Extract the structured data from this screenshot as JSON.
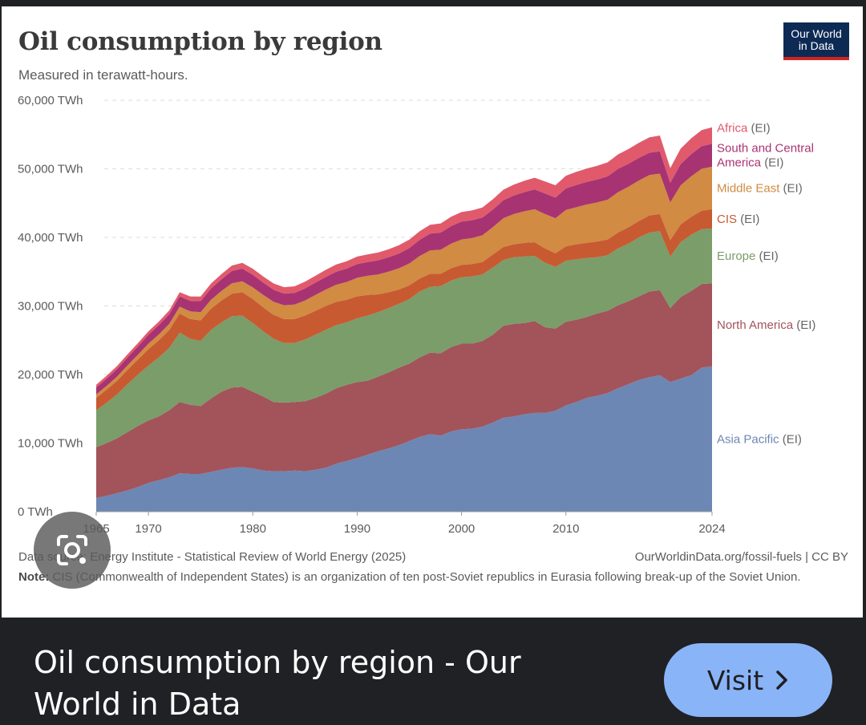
{
  "chart_data": {
    "type": "area",
    "stacked": true,
    "title": "Oil consumption by region",
    "subtitle": "Measured in terawatt-hours.",
    "ylim": [
      0,
      60000
    ],
    "y_ticks": [
      "0 TWh",
      "10,000 TWh",
      "20,000 TWh",
      "30,000 TWh",
      "40,000 TWh",
      "50,000 TWh",
      "60,000 TWh"
    ],
    "x_ticks": [
      "1965",
      "1970",
      "1980",
      "1990",
      "2000",
      "2010",
      "2024"
    ],
    "xlim": [
      1965,
      2024
    ],
    "grid": "horizontal-dashed",
    "legend": "right-inline",
    "x": [
      1965,
      1966,
      1967,
      1968,
      1969,
      1970,
      1971,
      1972,
      1973,
      1974,
      1975,
      1976,
      1977,
      1978,
      1979,
      1980,
      1981,
      1982,
      1983,
      1984,
      1985,
      1986,
      1987,
      1988,
      1989,
      1990,
      1991,
      1992,
      1993,
      1994,
      1995,
      1996,
      1997,
      1998,
      1999,
      2000,
      2001,
      2002,
      2003,
      2004,
      2005,
      2006,
      2007,
      2008,
      2009,
      2010,
      2011,
      2012,
      2013,
      2014,
      2015,
      2016,
      2017,
      2018,
      2019,
      2020,
      2021,
      2022,
      2023,
      2024
    ],
    "series": [
      {
        "name": "Asia Pacific (EI)",
        "color": "#6d87b4",
        "values": [
          2000,
          2300,
          2700,
          3100,
          3600,
          4200,
          4600,
          5000,
          5600,
          5500,
          5500,
          5800,
          6100,
          6400,
          6500,
          6300,
          6000,
          5900,
          5900,
          6000,
          5900,
          6100,
          6400,
          7000,
          7400,
          7800,
          8300,
          8800,
          9200,
          9700,
          10300,
          10900,
          11300,
          11100,
          11700,
          12000,
          12100,
          12400,
          13000,
          13700,
          13900,
          14200,
          14400,
          14400,
          14700,
          15500,
          16000,
          16600,
          16900,
          17300,
          18000,
          18600,
          19200,
          19600,
          19900,
          18900,
          19400,
          19900,
          21000,
          21200
        ]
      },
      {
        "name": "North America (EI)",
        "color": "#a2545a",
        "values": [
          7400,
          7700,
          8000,
          8500,
          8900,
          9100,
          9300,
          9800,
          10400,
          10100,
          9900,
          10700,
          11400,
          11700,
          11700,
          11200,
          10800,
          10100,
          10000,
          10000,
          10200,
          10500,
          10800,
          11000,
          11100,
          11100,
          10800,
          10900,
          11100,
          11300,
          11300,
          11600,
          11900,
          12000,
          12300,
          12500,
          12400,
          12500,
          12800,
          13400,
          13500,
          13300,
          13400,
          12500,
          12000,
          12200,
          12000,
          11800,
          12000,
          12000,
          12100,
          12100,
          12200,
          12500,
          12400,
          10800,
          11900,
          12300,
          12200,
          12100
        ]
      },
      {
        "name": "Europe (EI)",
        "color": "#7a9d6a",
        "values": [
          5400,
          5900,
          6400,
          7000,
          7500,
          8000,
          8600,
          9100,
          10100,
          9600,
          9500,
          10000,
          10100,
          10400,
          10400,
          10000,
          9500,
          9200,
          8700,
          8600,
          9000,
          9200,
          9300,
          9200,
          9100,
          9300,
          9500,
          9400,
          9400,
          9300,
          9400,
          9600,
          9600,
          9800,
          9700,
          9700,
          9800,
          9700,
          9800,
          9600,
          9700,
          9700,
          9500,
          9400,
          9000,
          8900,
          8800,
          8600,
          8200,
          8100,
          8300,
          8400,
          8600,
          8600,
          8600,
          7500,
          8000,
          8200,
          8000,
          8000
        ]
      },
      {
        "name": "CIS (EI)",
        "color": "#c85a31",
        "values": [
          1800,
          1900,
          2000,
          2100,
          2200,
          2400,
          2500,
          2600,
          2800,
          2900,
          3000,
          3100,
          3200,
          3300,
          3400,
          3500,
          3500,
          3500,
          3500,
          3500,
          3500,
          3500,
          3500,
          3400,
          3300,
          3200,
          3000,
          2600,
          2300,
          2100,
          2000,
          1900,
          1900,
          1800,
          1800,
          1800,
          1800,
          1800,
          1900,
          1900,
          1900,
          2000,
          2000,
          2100,
          2000,
          2100,
          2200,
          2200,
          2300,
          2300,
          2300,
          2400,
          2400,
          2500,
          2500,
          2400,
          2600,
          2600,
          2700,
          2800
        ]
      },
      {
        "name": "Middle East (EI)",
        "color": "#d18b42",
        "values": [
          500,
          550,
          600,
          650,
          700,
          800,
          850,
          900,
          1000,
          1100,
          1200,
          1300,
          1400,
          1500,
          1600,
          1700,
          1800,
          1900,
          2000,
          2100,
          2200,
          2300,
          2400,
          2500,
          2600,
          2700,
          2800,
          2900,
          3000,
          3100,
          3200,
          3300,
          3400,
          3500,
          3600,
          3700,
          3800,
          3900,
          4000,
          4200,
          4400,
          4600,
          4800,
          5000,
          5100,
          5300,
          5400,
          5600,
          5700,
          5800,
          5900,
          5900,
          5900,
          5900,
          5900,
          5500,
          5700,
          5900,
          6100,
          6200
        ]
      },
      {
        "name": "South and Central America (EI)",
        "color": "#a83372",
        "values": [
          1000,
          1050,
          1100,
          1150,
          1200,
          1300,
          1350,
          1400,
          1500,
          1550,
          1600,
          1650,
          1700,
          1800,
          1850,
          1850,
          1800,
          1750,
          1700,
          1700,
          1750,
          1800,
          1850,
          1900,
          1950,
          2000,
          2000,
          2050,
          2100,
          2150,
          2250,
          2350,
          2450,
          2500,
          2550,
          2600,
          2600,
          2600,
          2550,
          2600,
          2700,
          2800,
          2900,
          3000,
          3000,
          3150,
          3250,
          3300,
          3350,
          3400,
          3400,
          3350,
          3300,
          3250,
          3250,
          2850,
          3100,
          3250,
          3300,
          3350
        ]
      },
      {
        "name": "Africa (EI)",
        "color": "#e05a6c",
        "values": [
          400,
          420,
          440,
          460,
          480,
          500,
          520,
          560,
          600,
          640,
          680,
          720,
          760,
          800,
          840,
          880,
          900,
          920,
          940,
          960,
          980,
          1000,
          1020,
          1050,
          1080,
          1100,
          1120,
          1140,
          1160,
          1200,
          1230,
          1260,
          1300,
          1330,
          1360,
          1400,
          1430,
          1460,
          1500,
          1550,
          1600,
          1650,
          1700,
          1750,
          1800,
          1850,
          1900,
          1950,
          2000,
          2050,
          2100,
          2150,
          2200,
          2250,
          2300,
          2150,
          2250,
          2300,
          2350,
          2400
        ]
      }
    ]
  },
  "source": {
    "left": "Data source: Energy Institute - Statistical Review of World Energy (2025)",
    "right": "OurWorldinData.org/fossil-fuels | CC BY"
  },
  "note": {
    "label": "Note:",
    "text": "CIS (Commonwealth of Independent States) is an organization of ten post-Soviet republics in Eurasia following break-up of the Soviet Union."
  },
  "logo": {
    "line1": "Our World",
    "line2": "in Data"
  },
  "result": {
    "title": "Oil consumption by region - Our World in Data",
    "visit_label": "Visit"
  },
  "icons": {
    "lens": "google-lens-icon",
    "chevron": "chevron-right-icon"
  }
}
